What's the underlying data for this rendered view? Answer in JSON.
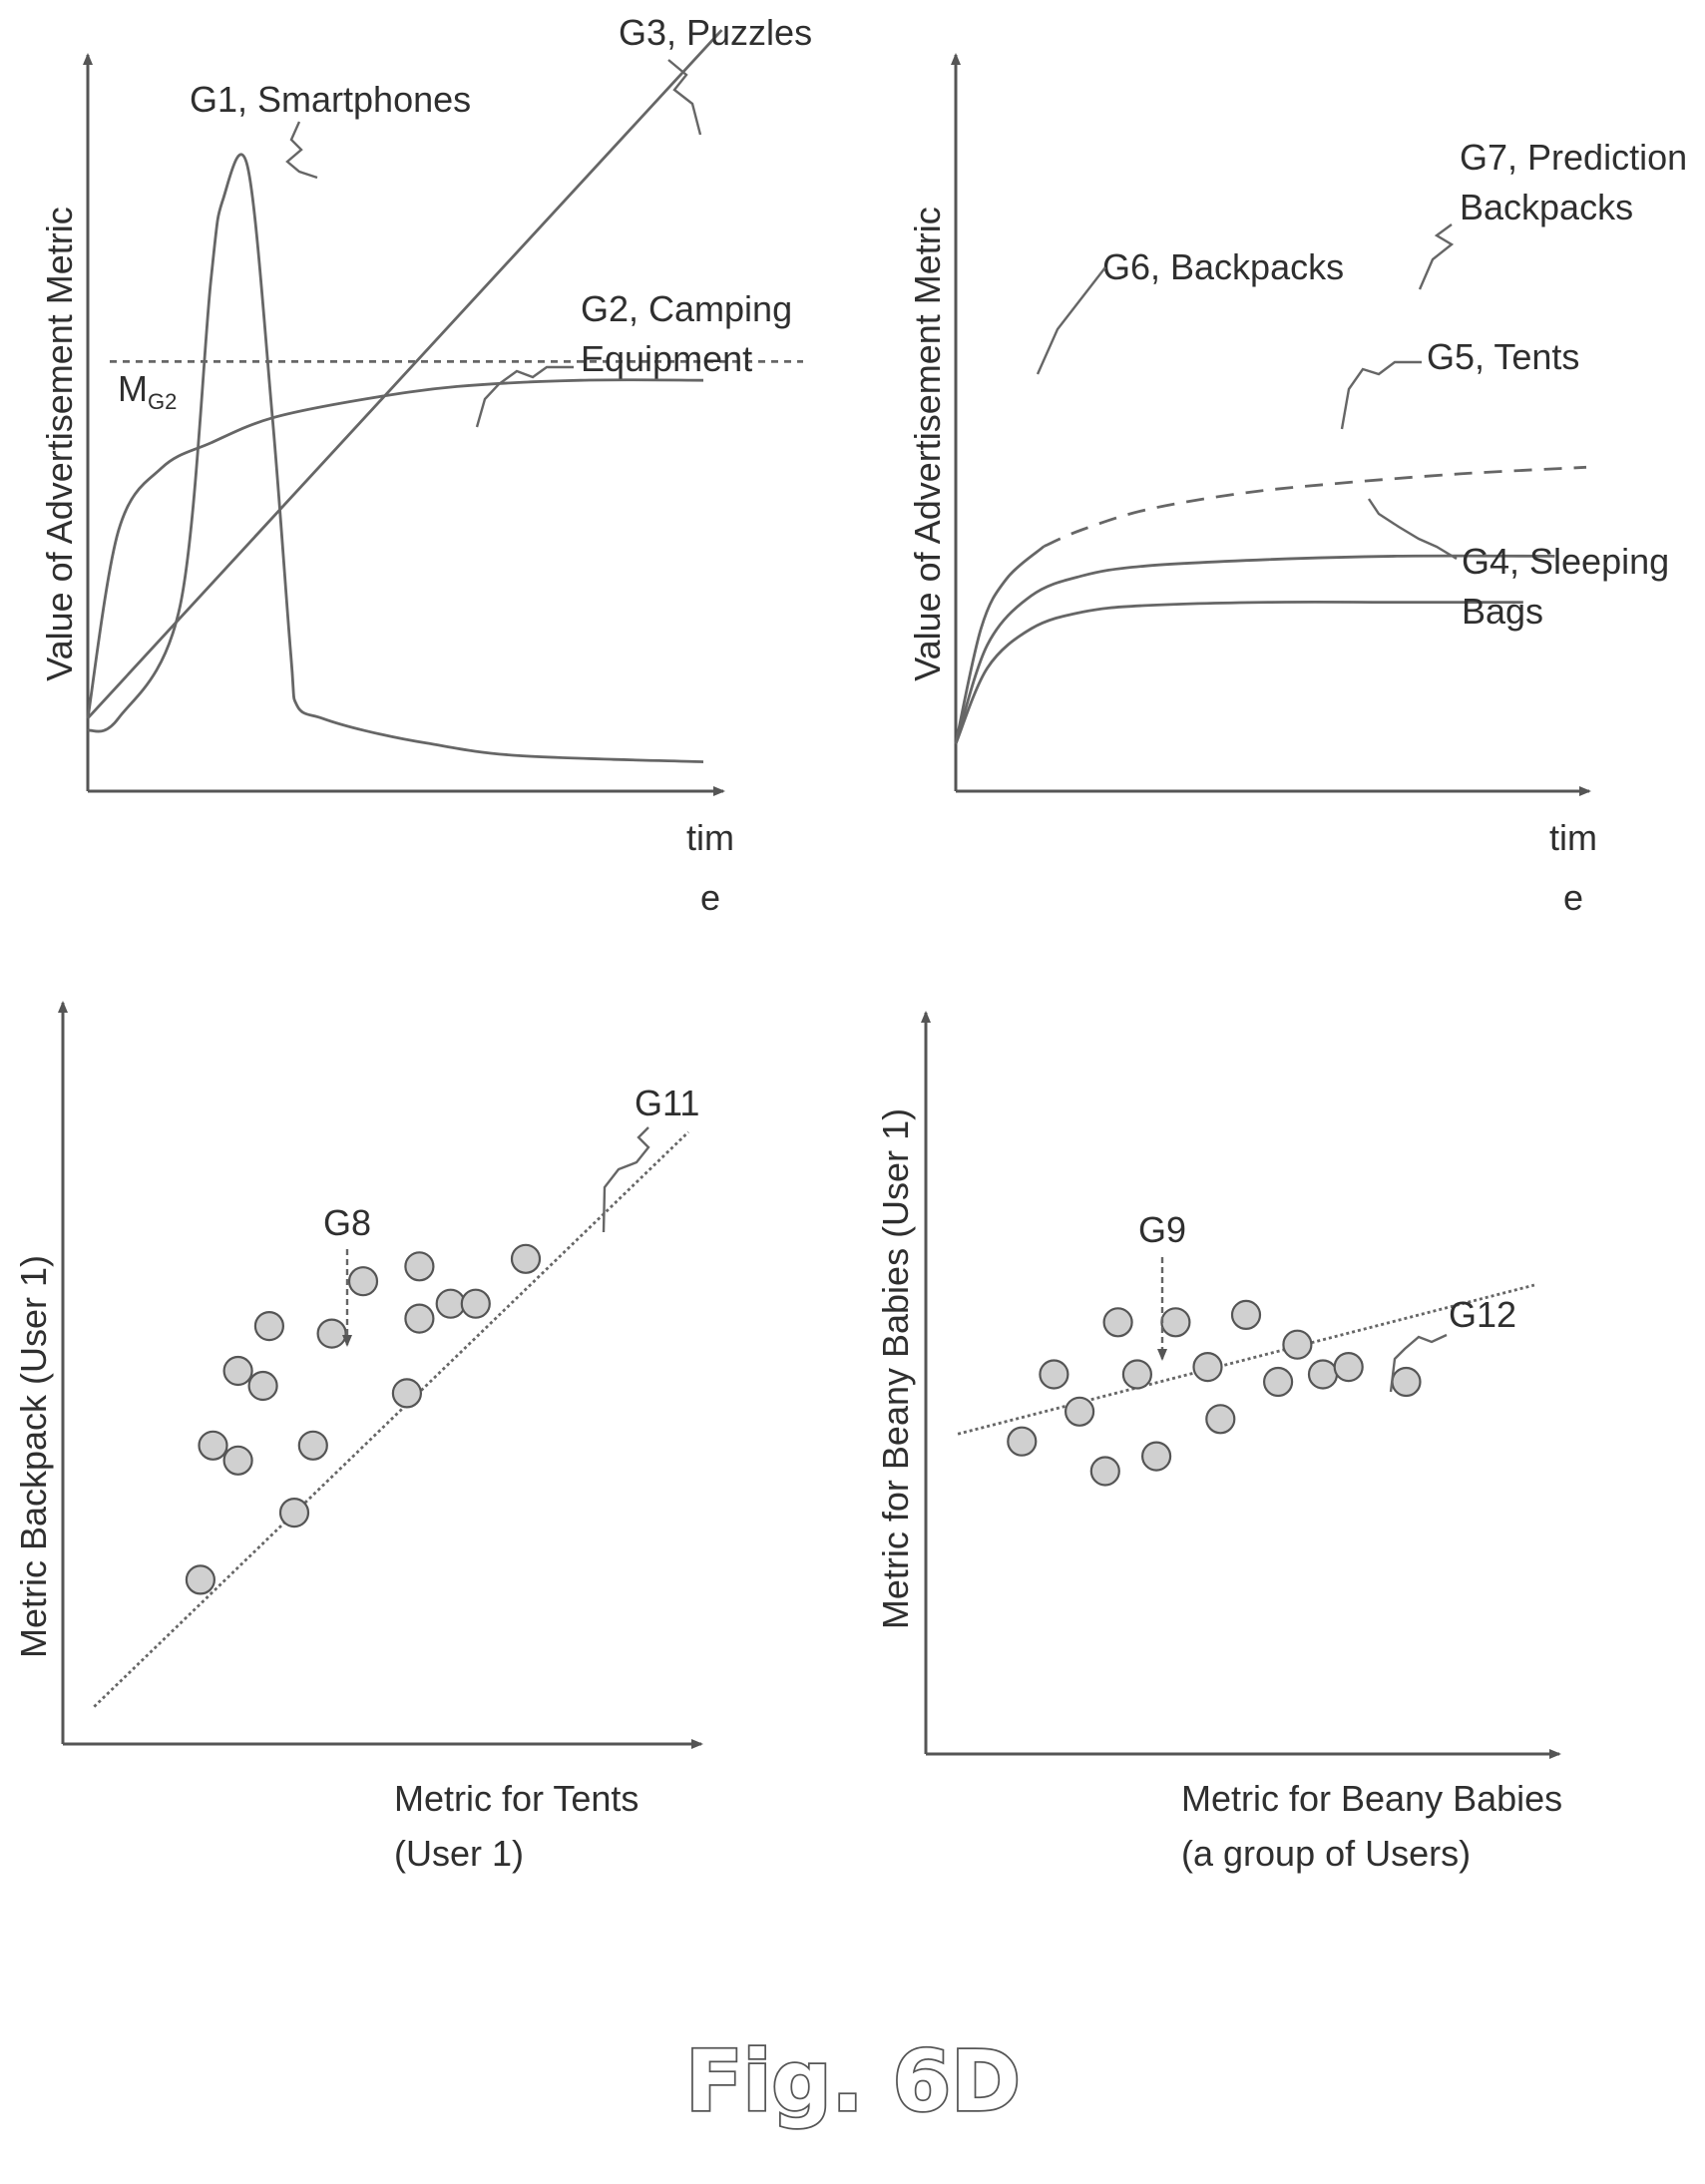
{
  "figure_caption": "Fig. 6D",
  "colors": {
    "ink": "#555555",
    "dot_fill": "#d0d0d0",
    "background": "#ffffff"
  },
  "chart_data": [
    {
      "type": "line",
      "ylabel": "Value of Advertisement Metric",
      "xlabel_line1": "tim",
      "xlabel_line2": "e",
      "threshold": {
        "label": "M",
        "sub": "G2",
        "value": 0.69
      },
      "series": [
        {
          "name": "G1, Smartphones",
          "x": [
            0,
            0.05,
            0.15,
            0.2,
            0.22,
            0.26,
            0.3,
            0.33,
            0.34,
            0.38,
            0.45,
            0.55,
            0.7,
            1.0
          ],
          "values": [
            0.1,
            0.12,
            0.3,
            0.82,
            0.95,
            1.0,
            0.6,
            0.22,
            0.14,
            0.12,
            0.1,
            0.08,
            0.06,
            0.05
          ]
        },
        {
          "name": "G2, Camping Equipment",
          "line1": "G2, Camping",
          "line2": "Equipment",
          "x": [
            0,
            0.05,
            0.12,
            0.2,
            0.3,
            0.45,
            0.6,
            0.8,
            1.0
          ],
          "values": [
            0.12,
            0.42,
            0.52,
            0.56,
            0.6,
            0.63,
            0.65,
            0.66,
            0.66
          ]
        },
        {
          "name": "G3, Puzzles",
          "x": [
            0,
            1.03
          ],
          "values": [
            0.12,
            1.22
          ]
        }
      ]
    },
    {
      "type": "line",
      "ylabel": "Value of Advertisement Metric",
      "xlabel_line1": "tim",
      "xlabel_line2": "e",
      "series": [
        {
          "name": "G4, Sleeping Bags",
          "line1": "G4, Sleeping",
          "line2": "Bags",
          "x": [
            0,
            0.05,
            0.12,
            0.2,
            0.3,
            0.5,
            0.7,
            0.9
          ],
          "values": [
            0.15,
            0.38,
            0.5,
            0.55,
            0.57,
            0.58,
            0.58,
            0.58
          ]
        },
        {
          "name": "G5, Tents",
          "x": [
            0,
            0.05,
            0.12,
            0.2,
            0.3,
            0.5,
            0.7,
            0.95
          ],
          "values": [
            0.15,
            0.45,
            0.6,
            0.66,
            0.69,
            0.71,
            0.72,
            0.72
          ]
        },
        {
          "name": "G6, Backpacks",
          "x": [
            0,
            0.04,
            0.08,
            0.14
          ],
          "values": [
            0.15,
            0.5,
            0.65,
            0.75
          ]
        },
        {
          "name": "G7, Prediction Backpacks",
          "line1": "G7, Prediction",
          "line2": "Backpacks",
          "dashed": true,
          "x": [
            0.14,
            0.2,
            0.3,
            0.45,
            0.6,
            0.8,
            1.0
          ],
          "values": [
            0.75,
            0.8,
            0.86,
            0.91,
            0.94,
            0.97,
            0.99
          ]
        }
      ]
    },
    {
      "type": "scatter",
      "ylabel": "Metric Backpack (User 1)",
      "xlabel_line1": "Metric for Tents",
      "xlabel_line2": "(User 1)",
      "pointer_label": "G8",
      "fit_label": "G11",
      "fit": {
        "x": [
          0.05,
          1.0
        ],
        "y": [
          0.05,
          0.82
        ]
      },
      "points": {
        "x": [
          0.22,
          0.24,
          0.28,
          0.28,
          0.32,
          0.33,
          0.37,
          0.4,
          0.43,
          0.48,
          0.55,
          0.57,
          0.57,
          0.62,
          0.66,
          0.74
        ],
        "y": [
          0.22,
          0.4,
          0.38,
          0.5,
          0.48,
          0.56,
          0.31,
          0.4,
          0.55,
          0.62,
          0.47,
          0.57,
          0.64,
          0.59,
          0.59,
          0.65
        ]
      }
    },
    {
      "type": "scatter",
      "ylabel": "Metric for Beany Babies (User 1)",
      "xlabel_line1": "Metric for Beany Babies",
      "xlabel_line2": "(a group of Users)",
      "pointer_label": "G9",
      "fit_label": "G12",
      "fit": {
        "x": [
          0.05,
          0.95
        ],
        "y": [
          0.43,
          0.63
        ]
      },
      "points": {
        "x": [
          0.15,
          0.2,
          0.24,
          0.28,
          0.3,
          0.33,
          0.36,
          0.39,
          0.44,
          0.46,
          0.5,
          0.55,
          0.58,
          0.62,
          0.66,
          0.75
        ],
        "y": [
          0.42,
          0.51,
          0.46,
          0.38,
          0.58,
          0.51,
          0.4,
          0.58,
          0.52,
          0.45,
          0.59,
          0.5,
          0.55,
          0.51,
          0.52,
          0.5
        ]
      }
    }
  ]
}
